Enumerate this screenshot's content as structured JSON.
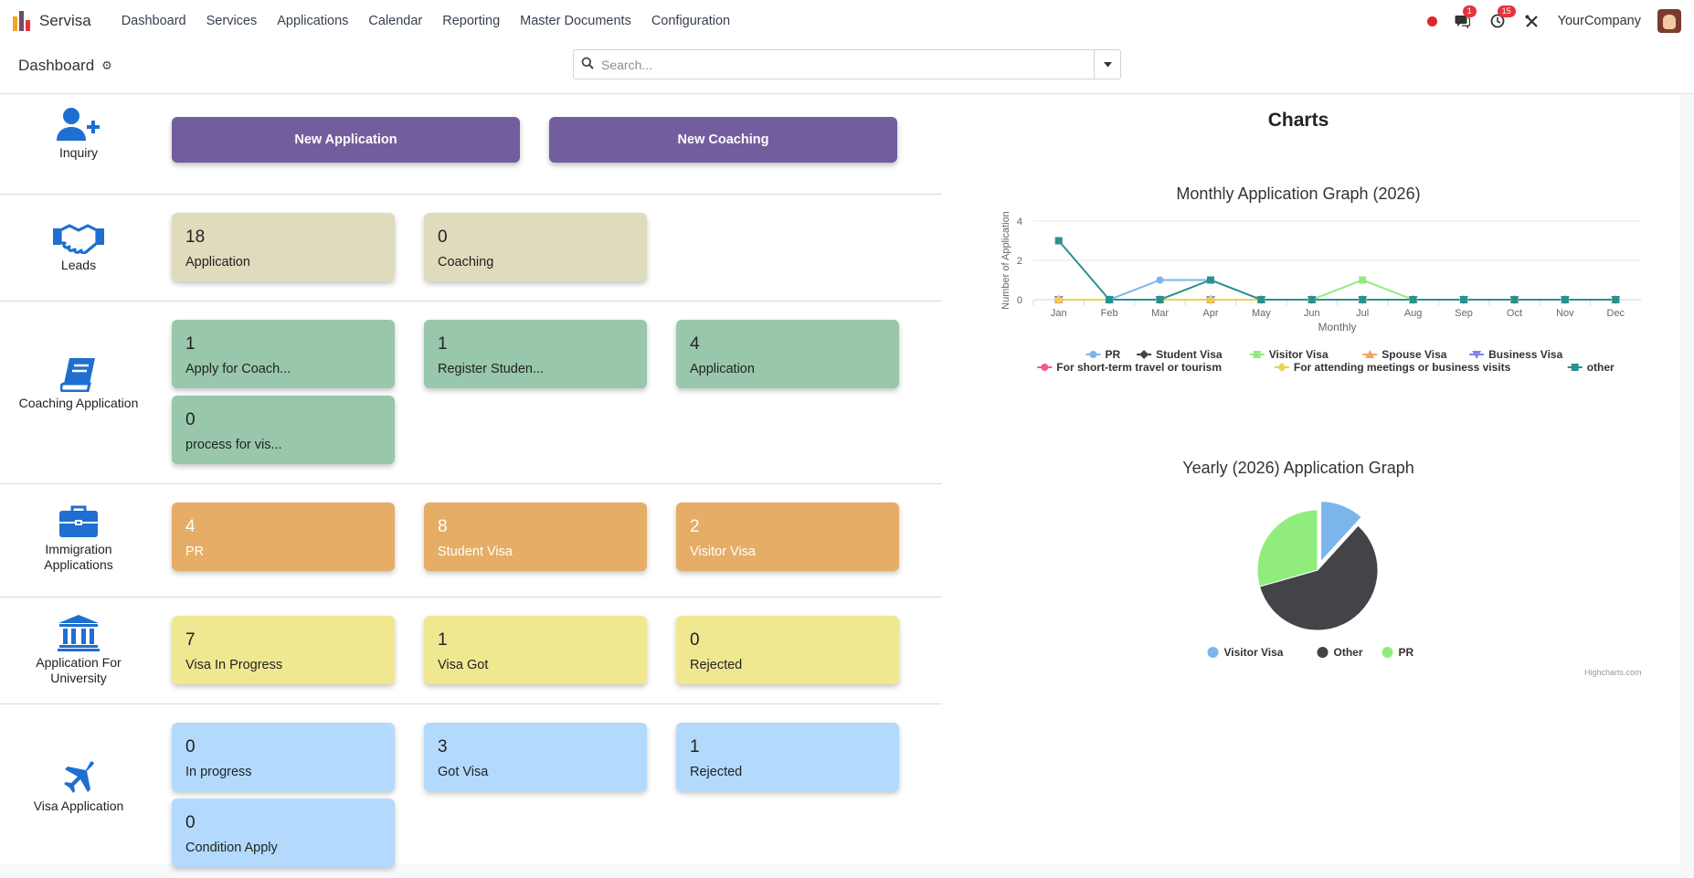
{
  "navbar": {
    "brand": "Servisa",
    "menu": [
      "Dashboard",
      "Services",
      "Applications",
      "Calendar",
      "Reporting",
      "Master Documents",
      "Configuration"
    ],
    "messages_badge": "1",
    "activities_badge": "15",
    "company": "YourCompany"
  },
  "control": {
    "title": "Dashboard",
    "search_placeholder": "Search..."
  },
  "inquiry": {
    "label": "Inquiry",
    "new_application": "New Application",
    "new_coaching": "New Coaching"
  },
  "leads": {
    "label": "Leads",
    "cards": [
      {
        "value": "18",
        "label": "Application"
      },
      {
        "value": "0",
        "label": "Coaching"
      }
    ]
  },
  "coaching": {
    "label": "Coaching Application",
    "cards": [
      {
        "value": "1",
        "label": "Apply for Coach..."
      },
      {
        "value": "1",
        "label": "Register Studen..."
      },
      {
        "value": "4",
        "label": "Application"
      },
      {
        "value": "0",
        "label": "process for vis..."
      }
    ]
  },
  "immigration": {
    "label_line1": "Immigration",
    "label_line2": "Applications",
    "cards": [
      {
        "value": "4",
        "label": "PR"
      },
      {
        "value": "8",
        "label": "Student Visa"
      },
      {
        "value": "2",
        "label": "Visitor Visa"
      }
    ]
  },
  "university": {
    "label_line1": "Application For",
    "label_line2": "University",
    "cards": [
      {
        "value": "7",
        "label": "Visa In Progress"
      },
      {
        "value": "1",
        "label": "Visa Got"
      },
      {
        "value": "0",
        "label": "Rejected"
      }
    ]
  },
  "visa": {
    "label": "Visa Application",
    "cards": [
      {
        "value": "0",
        "label": "In progress"
      },
      {
        "value": "3",
        "label": "Got Visa"
      },
      {
        "value": "1",
        "label": "Rejected"
      },
      {
        "value": "0",
        "label": "Condition Apply"
      }
    ]
  },
  "charts_heading": "Charts",
  "credits": "Highcharts.com",
  "colors": {
    "purple_button": "#725d9e",
    "leads_card": "#dfdbbd",
    "coaching_card": "#98c7ab",
    "immigration_card": "#e5ad66",
    "university_card": "#f0e891",
    "visa_card": "#b3dafc",
    "icon_blue": "#1e6fd0"
  },
  "chart_data": [
    {
      "type": "line",
      "title": "Monthly Application Graph (2026)",
      "xlabel": "Monthly",
      "ylabel": "Number of Application",
      "categories": [
        "Jan",
        "Feb",
        "Mar",
        "Apr",
        "May",
        "Jun",
        "Jul",
        "Aug",
        "Sep",
        "Oct",
        "Nov",
        "Dec"
      ],
      "ylim": [
        0,
        4
      ],
      "yticks": [
        0,
        2,
        4
      ],
      "grid": true,
      "legend_position": "bottom",
      "series": [
        {
          "name": "PR",
          "color": "#7cb5ec",
          "marker": "circle",
          "values": [
            0,
            0,
            1,
            1,
            0,
            0,
            0,
            0,
            0,
            0,
            0,
            0
          ]
        },
        {
          "name": "Student Visa",
          "color": "#434348",
          "marker": "diamond",
          "values": [
            0,
            0,
            0,
            0,
            0,
            0,
            0,
            0,
            0,
            0,
            0,
            0
          ]
        },
        {
          "name": "Visitor Visa",
          "color": "#90ed7d",
          "marker": "square",
          "values": [
            0,
            0,
            0,
            0,
            0,
            0,
            1,
            0,
            0,
            0,
            0,
            0
          ]
        },
        {
          "name": "Spouse Visa",
          "color": "#f7a35c",
          "marker": "triangle",
          "values": [
            0,
            0,
            0,
            0,
            0,
            0,
            0,
            0,
            0,
            0,
            0,
            0
          ]
        },
        {
          "name": "Business Visa",
          "color": "#8085e9",
          "marker": "triangle-down",
          "values": [
            0,
            0,
            0,
            0,
            0,
            0,
            0,
            0,
            0,
            0,
            0,
            0
          ]
        },
        {
          "name": "For short-term travel or tourism",
          "color": "#f15c80",
          "marker": "circle",
          "values": [
            0,
            0,
            0,
            0,
            0,
            0,
            0,
            0,
            0,
            0,
            0,
            0
          ]
        },
        {
          "name": "For attending meetings or business visits",
          "color": "#e4d354",
          "marker": "diamond",
          "values": [
            0,
            0,
            0,
            0,
            0,
            0,
            0,
            0,
            0,
            0,
            0,
            0
          ]
        },
        {
          "name": "other",
          "color": "#2b908f",
          "marker": "square",
          "values": [
            3,
            0,
            0,
            1,
            0,
            0,
            0,
            0,
            0,
            0,
            0,
            0
          ]
        }
      ]
    },
    {
      "type": "pie",
      "title": "Yearly (2026) Application Graph",
      "legend_position": "bottom",
      "slices": [
        {
          "name": "Visitor Visa",
          "value": 2,
          "color": "#7cb5ec"
        },
        {
          "name": "Other",
          "value": 10,
          "color": "#434348"
        },
        {
          "name": "PR",
          "value": 5,
          "color": "#90ed7d"
        }
      ]
    }
  ]
}
